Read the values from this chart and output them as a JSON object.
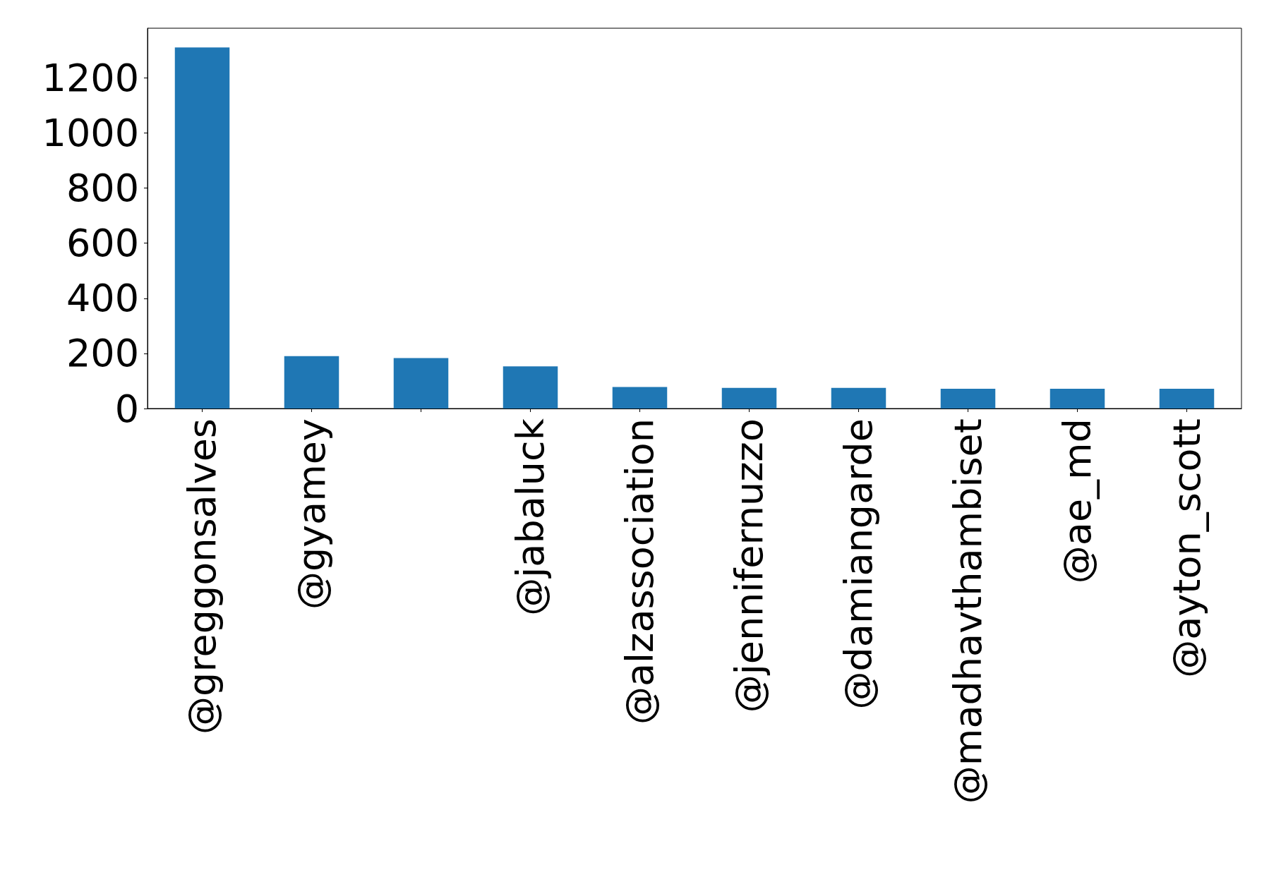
{
  "chart_data": {
    "type": "bar",
    "categories": [
      "@greggonsalves",
      "@gyamey",
      null,
      "@jabaluck",
      "@alzassociation",
      "@jennifernuzzo",
      "@damiangarde",
      "@madhavthambiset",
      "@ae_md",
      "@ayton_scott"
    ],
    "values": [
      1310,
      190,
      183,
      153,
      78,
      75,
      75,
      72,
      72,
      72
    ],
    "color": "#1f77b4",
    "ylim": [
      0,
      1380
    ],
    "yticks": [
      0,
      200,
      400,
      600,
      800,
      1000,
      1200
    ],
    "grid": false
  }
}
